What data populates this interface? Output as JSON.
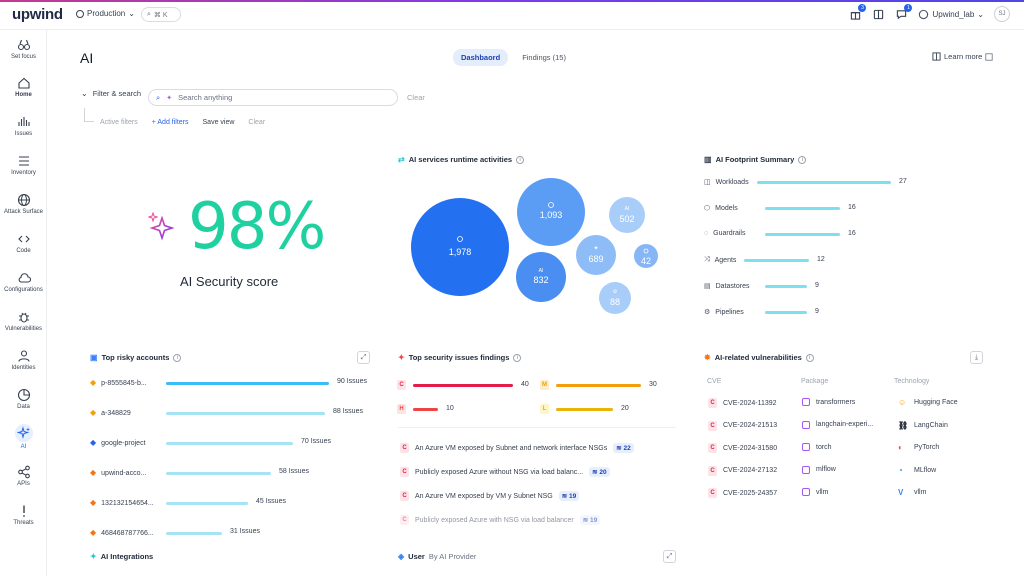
{
  "brand": {
    "logo": "upwind"
  },
  "topbar": {
    "environment": "Production",
    "search_shortcut": "⌘ K",
    "gift_badge": "3",
    "chat_badge": "1",
    "org": "Upwind_lab",
    "avatar": "SJ"
  },
  "sidebar": {
    "items": [
      {
        "label": "Set focus",
        "icon": "binoculars-icon"
      },
      {
        "label": "Home",
        "icon": "home-icon"
      },
      {
        "label": "Issues",
        "icon": "issues-icon"
      },
      {
        "label": "Inventory",
        "icon": "inventory-icon"
      },
      {
        "label": "Attack Surface",
        "icon": "globe-icon"
      },
      {
        "label": "Code",
        "icon": "code-icon"
      },
      {
        "label": "Configurations",
        "icon": "cloud-icon"
      },
      {
        "label": "Vulnerabilities",
        "icon": "bug-icon"
      },
      {
        "label": "Identities",
        "icon": "person-icon"
      },
      {
        "label": "Data",
        "icon": "pie-icon"
      },
      {
        "label": "AI",
        "icon": "sparkle-icon"
      },
      {
        "label": "APIs",
        "icon": "share-icon"
      },
      {
        "label": "Threats",
        "icon": "alert-icon"
      }
    ]
  },
  "page": {
    "title": "AI",
    "tabs": [
      "Dashbaord",
      "Findings (15)"
    ],
    "learn_more": "Learn more"
  },
  "filters": {
    "label": "Filter & search",
    "placeholder": "Search anything",
    "clear": "Clear",
    "active_filters": "Active filters",
    "add_filters": "+ Add filters",
    "save_view": "Save view",
    "clear2": "Clear"
  },
  "score": {
    "value": "98%",
    "label": "AI Security score"
  },
  "runtime": {
    "title": "AI services runtime activities",
    "bubbles": [
      {
        "value": "1,978",
        "color": "#2370f0"
      },
      {
        "value": "1,093",
        "color": "#5b9df4"
      },
      {
        "value": "832",
        "color": "#4a8ef2"
      },
      {
        "value": "689",
        "color": "#8dbcf7"
      },
      {
        "value": "502",
        "color": "#a9cdf9"
      },
      {
        "value": "42",
        "color": "#86b6f6"
      },
      {
        "value": "88",
        "color": "#a9cdf9"
      }
    ]
  },
  "footprint": {
    "title": "AI Footprint Summary",
    "items": [
      {
        "label": "Workloads",
        "value": 27
      },
      {
        "label": "Models",
        "value": 16
      },
      {
        "label": "Guardrails",
        "value": 16
      },
      {
        "label": "Agents",
        "value": 12
      },
      {
        "label": "Datastores",
        "value": 9
      },
      {
        "label": "Pipelines",
        "value": 9
      }
    ]
  },
  "risky": {
    "title": "Top risky accounts",
    "items": [
      {
        "name": "p-8555845-b...",
        "issues": "90 Issues",
        "count": 90,
        "provider": "gcp"
      },
      {
        "name": "a-348829",
        "issues": "88 Issues",
        "count": 88,
        "provider": "gcp"
      },
      {
        "name": "google-project",
        "issues": "70 Issues",
        "count": 70,
        "provider": "azure"
      },
      {
        "name": "upwind-acco...",
        "issues": "58 Issues",
        "count": 58,
        "provider": "aws"
      },
      {
        "name": "132132154654...",
        "issues": "45 Issues",
        "count": 45,
        "provider": "aws"
      },
      {
        "name": "468468787766...",
        "issues": "31 Issues",
        "count": 31,
        "provider": "aws"
      }
    ]
  },
  "security": {
    "title": "Top security issues findings",
    "severity": [
      {
        "letter": "C",
        "value": "40",
        "color": "#e11d48",
        "bg": "#fde2e7"
      },
      {
        "letter": "M",
        "value": "30",
        "color": "#f59e0b",
        "bg": "#fdecc8"
      },
      {
        "letter": "H",
        "value": "10",
        "color": "#ef4444",
        "bg": "#fde2e2"
      },
      {
        "letter": "L",
        "value": "20",
        "color": "#eab308",
        "bg": "#fdf5c4"
      }
    ],
    "findings": [
      {
        "text": "An Azure VM exposed by Subnet and network interface NSGs",
        "count": "22"
      },
      {
        "text": "Publicly exposed Azure without NSG via load balanc...",
        "count": "20"
      },
      {
        "text": "An Azure VM exposed by VM y Subnet NSG",
        "count": "19"
      },
      {
        "text": "Publicly exposed Azure with NSG via load balancer",
        "count": "19"
      }
    ]
  },
  "vulns": {
    "title": "AI-related vulnerabilities",
    "headers": [
      "CVE",
      "Package",
      "Technology"
    ],
    "rows": [
      {
        "cve": "CVE-2024-11392",
        "pkg": "transformers",
        "tech": "Hugging Face"
      },
      {
        "cve": "CVE-2024-21513",
        "pkg": "langchain-experi...",
        "tech": "LangChain"
      },
      {
        "cve": "CVE-2024-31580",
        "pkg": "torch",
        "tech": "PyTorch"
      },
      {
        "cve": "CVE-2024-27132",
        "pkg": "mlflow",
        "tech": "MLflow"
      },
      {
        "cve": "CVE-2025-24357",
        "pkg": "vllm",
        "tech": "vllm"
      }
    ]
  },
  "bottom": {
    "integrations": "AI Integrations",
    "user_provider_a": "User",
    "user_provider_b": "By AI Provider"
  },
  "colors": {
    "accent": "#2563eb",
    "score": "#1fd1a0",
    "footprint_bar": "#7ce1ec",
    "account_bar_top": "#38bdf8",
    "account_bar": "#a5e3f5"
  }
}
